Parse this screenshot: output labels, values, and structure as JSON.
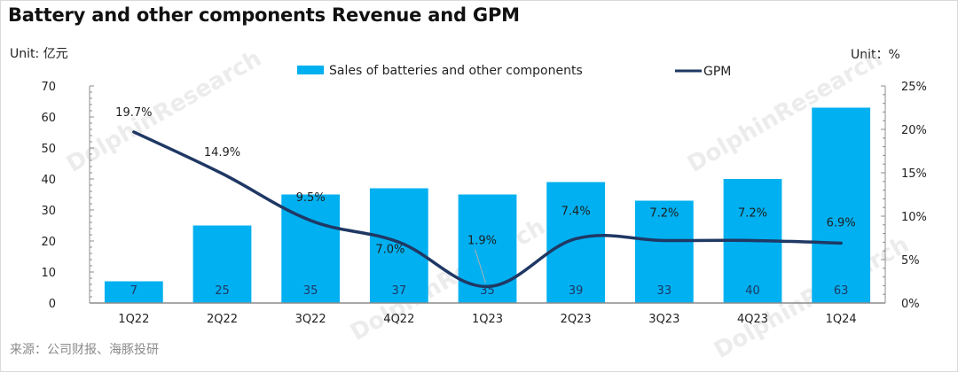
{
  "header": {
    "title": "Battery and other components Revenue and GPM",
    "unit_left": "Unit: 亿元",
    "unit_right": "Unit：%"
  },
  "footer": {
    "source": "来源：公司财报、海豚投研"
  },
  "watermark": {
    "text": "DolphinResearch",
    "cn_text": "海豚投研"
  },
  "colors": {
    "bar": "#00b0f0",
    "line": "#1f3864",
    "axis": "#8c8c8c"
  },
  "chart_data": {
    "type": "bar",
    "title": "Battery and other components Revenue and GPM",
    "categories": [
      "1Q22",
      "2Q22",
      "3Q22",
      "4Q22",
      "1Q23",
      "2Q23",
      "3Q23",
      "4Q23",
      "1Q24"
    ],
    "series": [
      {
        "name": "Sales of batteries and other components",
        "type": "bar",
        "axis": "left",
        "values": [
          7,
          25,
          35,
          37,
          35,
          39,
          33,
          40,
          63
        ],
        "labels": [
          "7",
          "25",
          "35",
          "37",
          "35",
          "39",
          "33",
          "40",
          "63"
        ]
      },
      {
        "name": "GPM",
        "type": "line",
        "smooth": true,
        "axis": "right",
        "values": [
          19.7,
          14.9,
          9.5,
          7.0,
          1.9,
          7.4,
          7.2,
          7.2,
          6.9
        ],
        "labels": [
          "19.7%",
          "14.9%",
          "9.5%",
          "7.0%",
          "1.9%",
          "7.4%",
          "7.2%",
          "7.2%",
          "6.9%"
        ]
      }
    ],
    "y_left": {
      "label": "Unit: 亿元",
      "range": [
        0,
        70
      ],
      "ticks": [
        0,
        10,
        20,
        30,
        40,
        50,
        60,
        70
      ],
      "tick_labels": [
        "0",
        "10",
        "20",
        "30",
        "40",
        "50",
        "60",
        "70"
      ]
    },
    "y_right": {
      "label": "Unit：%",
      "range": [
        0,
        25
      ],
      "ticks": [
        0,
        5,
        10,
        15,
        20,
        25
      ],
      "tick_labels": [
        "0%",
        "5%",
        "10%",
        "15%",
        "20%",
        "25%"
      ]
    },
    "legend": {
      "position": "top-center",
      "entries": [
        {
          "name": "Sales of batteries and other components",
          "marker": "bar"
        },
        {
          "name": "GPM",
          "marker": "line"
        }
      ]
    },
    "grid": false
  }
}
